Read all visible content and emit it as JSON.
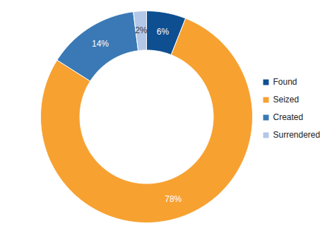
{
  "chart_data": {
    "type": "donut",
    "categories": [
      "Found",
      "Seized",
      "Created",
      "Surrendered"
    ],
    "values": [
      6,
      78,
      14,
      2
    ],
    "value_labels": [
      "6%",
      "78%",
      "14%",
      "2%"
    ],
    "colors": [
      "#0e4f91",
      "#f7a131",
      "#3a79b5",
      "#b3c7e8"
    ],
    "data_labels": true,
    "legend": "right"
  }
}
